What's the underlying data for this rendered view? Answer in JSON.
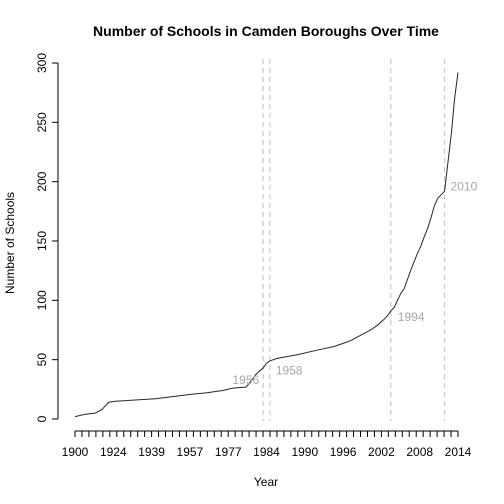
{
  "chart_data": {
    "type": "line",
    "title": "Number of Schools in Camden Boroughs Over Time",
    "xlabel": "Year",
    "ylabel": "Number of Schools",
    "xlim": [
      1900,
      2014
    ],
    "ylim": [
      0,
      300
    ],
    "y_ticks": [
      0,
      50,
      100,
      150,
      200,
      250,
      300
    ],
    "x_tick_labels": [
      "1900",
      "1924",
      "1939",
      "1957",
      "1977",
      "1984",
      "1990",
      "1996",
      "2002",
      "2008",
      "2014"
    ],
    "grid": false,
    "series": [
      {
        "x": [
          1900,
          1903,
          1906,
          1908,
          1910,
          1912,
          1924,
          1935,
          1939,
          1944,
          1947,
          1951,
          1954,
          1956,
          1957,
          1958,
          1960,
          1962,
          1966,
          1972,
          1977,
          1980,
          1982,
          1984,
          1986,
          1988,
          1990,
          1992,
          1993,
          1994,
          1995,
          1996,
          1997,
          1998,
          1999,
          2000,
          2001,
          2002,
          2003,
          2004,
          2005,
          2006,
          2007,
          2008,
          2009,
          2010,
          2011,
          2012,
          2013,
          2014
        ],
        "values": [
          2,
          4,
          5,
          8,
          14,
          15,
          17,
          21,
          22,
          24,
          26,
          27,
          38,
          43,
          47,
          49,
          51,
          52,
          54,
          58,
          61,
          64,
          66,
          69,
          72,
          75,
          79,
          84,
          87,
          91,
          94,
          100,
          106,
          110,
          118,
          126,
          133,
          140,
          146,
          154,
          161,
          170,
          180,
          186,
          189,
          192,
          216,
          240,
          270,
          292
        ]
      }
    ],
    "annotations": [
      {
        "x": 1956,
        "label": "1956"
      },
      {
        "x": 1958,
        "label": "1958"
      },
      {
        "x": 1994,
        "label": "1994"
      },
      {
        "x": 2010,
        "label": "2010"
      }
    ]
  }
}
